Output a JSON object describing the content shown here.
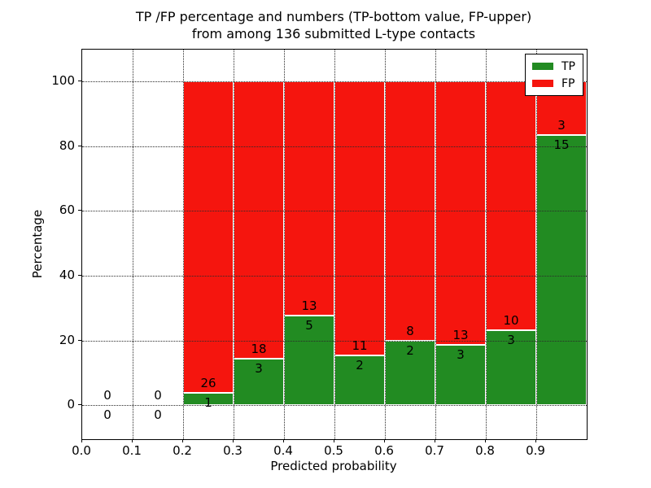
{
  "figure": {
    "title_line1": "TP /FP percentage and numbers (TP-bottom value, FP-upper)",
    "title_line2": "from among 136 submitted L-type contacts",
    "background": "#ffffff"
  },
  "axes": {
    "xlabel": "Predicted probability",
    "ylabel": "Percentage"
  },
  "legend": {
    "position": "upper right",
    "items": [
      {
        "label": "TP",
        "color": "#228b22"
      },
      {
        "label": "FP",
        "color": "#f5150e"
      }
    ]
  },
  "chart_data": {
    "type": "bar",
    "stacked": true,
    "title": "TP /FP percentage and numbers (TP-bottom value, FP-upper) from among 136 submitted L-type contacts",
    "xlabel": "Predicted probability",
    "ylabel": "Percentage",
    "total_submitted": 136,
    "bin_width": 0.1,
    "bin_starts": [
      0.0,
      0.1,
      0.2,
      0.3,
      0.4,
      0.5,
      0.6,
      0.7,
      0.8,
      0.9
    ],
    "x_tick_labels": [
      "0.0",
      "0.1",
      "0.2",
      "0.3",
      "0.4",
      "0.5",
      "0.6",
      "0.7",
      "0.8",
      "0.9"
    ],
    "y_tick_values": [
      0,
      20,
      40,
      60,
      80,
      100
    ],
    "xlim": [
      0.0,
      1.0
    ],
    "ylim": [
      -10.5,
      109.8
    ],
    "grid": true,
    "grid_style": "dotted",
    "legend_position": "upper right",
    "bar_edge_color": "#ffffff",
    "series": [
      {
        "name": "TP",
        "color": "#228b22",
        "counts": [
          0,
          0,
          1,
          3,
          5,
          2,
          2,
          3,
          3,
          15
        ],
        "percentages": [
          0,
          0,
          3.7,
          14.29,
          27.78,
          15.38,
          20.0,
          18.75,
          23.08,
          83.33
        ]
      },
      {
        "name": "FP",
        "color": "#f5150e",
        "counts": [
          0,
          0,
          26,
          18,
          13,
          11,
          8,
          13,
          10,
          3
        ],
        "percentages": [
          0,
          0,
          96.3,
          85.71,
          72.22,
          84.62,
          80.0,
          81.25,
          76.92,
          16.67
        ]
      }
    ]
  }
}
